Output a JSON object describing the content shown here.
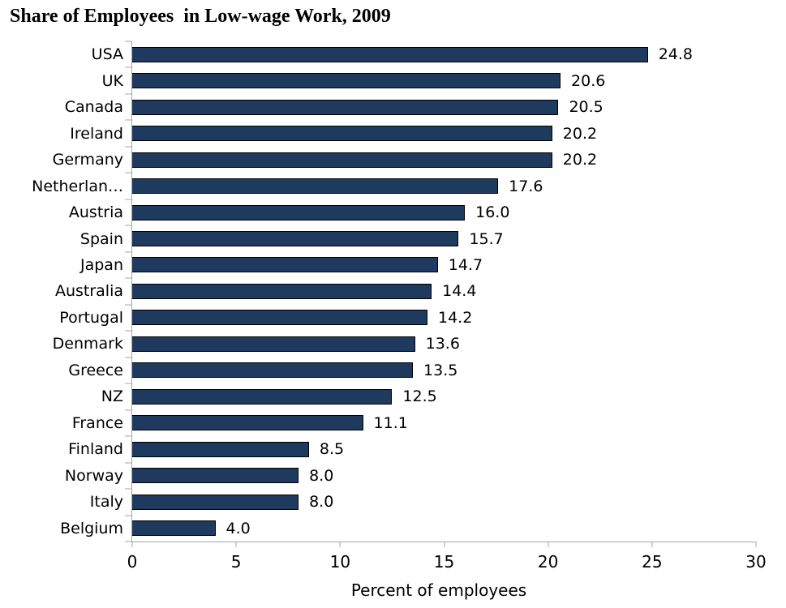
{
  "chart_data": {
    "type": "bar",
    "orientation": "horizontal",
    "title": "Share of Employees  in Low-wage Work, 2009",
    "categories": [
      "USA",
      "UK",
      "Canada",
      "Ireland",
      "Germany",
      "Netherlan…",
      "Austria",
      "Spain",
      "Japan",
      "Australia",
      "Portugal",
      "Denmark",
      "Greece",
      "NZ",
      "France",
      "Finland",
      "Norway",
      "Italy",
      "Belgium"
    ],
    "values": [
      24.8,
      20.6,
      20.5,
      20.2,
      20.2,
      17.6,
      16.0,
      15.7,
      14.7,
      14.4,
      14.2,
      13.6,
      13.5,
      12.5,
      11.1,
      8.5,
      8.0,
      8.0,
      4.0
    ],
    "value_labels": [
      "24.8",
      "20.6",
      "20.5",
      "20.2",
      "20.2",
      "17.6",
      "16.0",
      "15.7",
      "14.7",
      "14.4",
      "14.2",
      "13.6",
      "13.5",
      "12.5",
      "11.1",
      "8.5",
      "8.0",
      "8.0",
      "4.0"
    ],
    "xlabel": "Percent of employees",
    "ylabel": "",
    "xlim": [
      0,
      30
    ],
    "x_ticks": [
      "0",
      "5",
      "10",
      "15",
      "20",
      "25",
      "30"
    ],
    "x_tick_values": [
      0,
      5,
      10,
      15,
      20,
      25,
      30
    ],
    "grid": false,
    "legend": "none",
    "colors": {
      "bar_fill": "#1e3a5f",
      "bar_border": "#000000",
      "axis_line": "#a6a6a6",
      "text": "#000000",
      "background": "#ffffff"
    }
  }
}
